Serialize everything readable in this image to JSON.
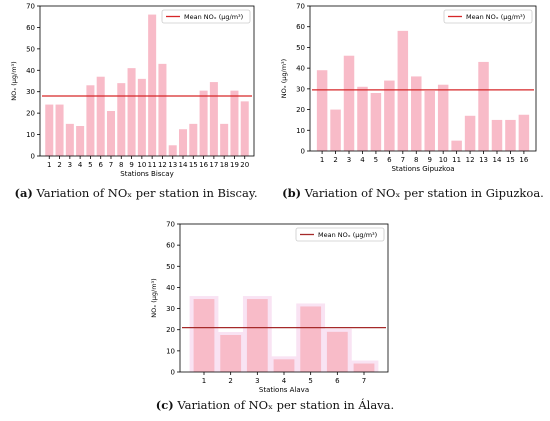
{
  "chart_data": [
    {
      "id": "a",
      "type": "bar",
      "categories": [
        "1",
        "2",
        "3",
        "4",
        "5",
        "6",
        "7",
        "8",
        "9",
        "10",
        "11",
        "12",
        "13",
        "14",
        "15",
        "16",
        "17",
        "18",
        "19",
        "20"
      ],
      "values": [
        24,
        24,
        15,
        14,
        33,
        37,
        21,
        34,
        41,
        36,
        66,
        43,
        5,
        12.5,
        15,
        30.5,
        34.5,
        15,
        30.5,
        25.5
      ],
      "mean": 28,
      "ylim": [
        0,
        70
      ],
      "yticks": [
        0,
        10,
        20,
        30,
        40,
        50,
        60,
        70
      ],
      "xlabel": "Stations Biscay",
      "ylabel": "NOₓ (μg/m³)",
      "legend": "Mean NOₓ (μg/m³)",
      "legend_position": "top-right",
      "caption_label": "(a)",
      "caption_text": " Variation of NOₓ per station in Biscay."
    },
    {
      "id": "b",
      "type": "bar",
      "categories": [
        "1",
        "2",
        "3",
        "4",
        "5",
        "6",
        "7",
        "8",
        "9",
        "10",
        "11",
        "12",
        "13",
        "14",
        "15",
        "16"
      ],
      "values": [
        39,
        20,
        46,
        31,
        28,
        34,
        58,
        36,
        29,
        32,
        5,
        17,
        43,
        15,
        15,
        17.5
      ],
      "mean": 29.5,
      "ylim": [
        0,
        70
      ],
      "yticks": [
        0,
        10,
        20,
        30,
        40,
        50,
        60,
        70
      ],
      "xlabel": "Stations Gipuzkoa",
      "ylabel": "NOₓ (μg/m³)",
      "legend": "Mean NOₓ (μg/m³)",
      "legend_position": "top-right",
      "caption_label": "(b)",
      "caption_text": " Variation of NOₓ per station in Gipuzkoa."
    },
    {
      "id": "c",
      "type": "bar",
      "categories": [
        "1",
        "2",
        "3",
        "4",
        "5",
        "6",
        "7"
      ],
      "values": [
        34.5,
        17.5,
        34.5,
        6,
        31,
        19,
        4
      ],
      "mean": 21,
      "ylim": [
        0,
        70
      ],
      "yticks": [
        0,
        10,
        20,
        30,
        40,
        50,
        60,
        70
      ],
      "xlabel": "Stations Alava",
      "ylabel": "NOₓ (μg/m³)",
      "legend": "Mean NOₓ (μg/m³)",
      "legend_position": "top-right",
      "caption_label": "(c)",
      "caption_text": " Variation of NOₓ per station in Álava."
    }
  ],
  "colors": {
    "bar": "#f8bbc8",
    "bar_halo": "#f9e3f3",
    "mean_line_ab": "#d62728",
    "mean_line_c": "#a52a2a",
    "axis": "#000000"
  }
}
